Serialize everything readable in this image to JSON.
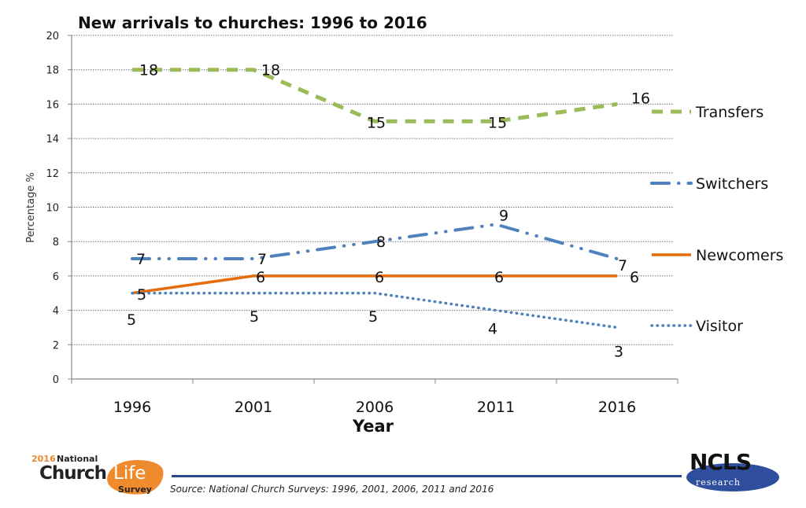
{
  "chart_data": {
    "type": "line",
    "title": "New arrivals to churches: 1996 to 2016",
    "xlabel": "Year",
    "ylabel": "Percentage %",
    "categories": [
      "1996",
      "2001",
      "2006",
      "2011",
      "2016"
    ],
    "ylim": [
      0,
      20
    ],
    "yticks": [
      0,
      2,
      4,
      6,
      8,
      10,
      12,
      14,
      16,
      18,
      20
    ],
    "grid": true,
    "legend_position": "right",
    "series": [
      {
        "name": "Transfers",
        "values": [
          18,
          18,
          15,
          15,
          16
        ],
        "color": "#9bbb59",
        "style": "dash"
      },
      {
        "name": "Switchers",
        "values": [
          7,
          7,
          8,
          9,
          7
        ],
        "color": "#4f81bd",
        "style": "long-dash-dot-dot"
      },
      {
        "name": "Newcomers",
        "values": [
          5,
          6,
          6,
          6,
          6
        ],
        "color": "#e46c0a",
        "style": "solid"
      },
      {
        "name": "Visitor",
        "values": [
          5,
          5,
          5,
          4,
          3
        ],
        "color": "#4f81bd",
        "style": "dot"
      }
    ]
  },
  "footer": {
    "source": "Source: National Church Surveys: 1996, 2001, 2006, 2011 and 2016",
    "logo_left": {
      "year": "2016",
      "national": "National",
      "church": "Church",
      "life": "Life",
      "survey": "Survey"
    },
    "logo_right": {
      "name": "NCLS",
      "sub": "research"
    }
  }
}
